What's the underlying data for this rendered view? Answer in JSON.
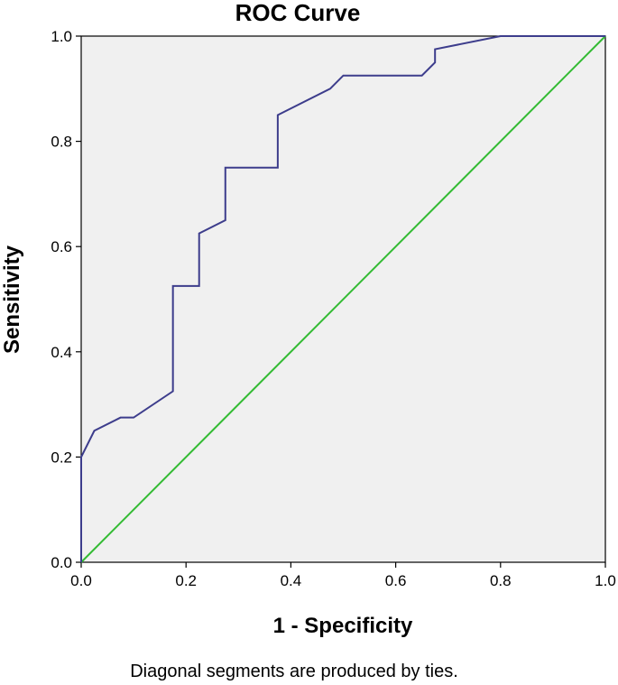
{
  "chart_data": {
    "type": "line",
    "title": "ROC Curve",
    "xlabel": "1 - Specificity",
    "ylabel": "Sensitivity",
    "xlim": [
      0.0,
      1.0
    ],
    "ylim": [
      0.0,
      1.0
    ],
    "xticks": [
      "0.0",
      "0.2",
      "0.4",
      "0.6",
      "0.8",
      "1.0"
    ],
    "yticks": [
      "0.0",
      "0.2",
      "0.4",
      "0.6",
      "0.8",
      "1.0"
    ],
    "grid": false,
    "plot_background": "#f0f0f0",
    "series": [
      {
        "color": "#3d3d8c",
        "x": [
          0.0,
          0.0,
          0.025,
          0.075,
          0.1,
          0.175,
          0.175,
          0.225,
          0.225,
          0.275,
          0.275,
          0.375,
          0.375,
          0.475,
          0.5,
          0.65,
          0.675,
          0.675,
          0.8,
          1.0
        ],
        "y": [
          0.0,
          0.2,
          0.25,
          0.275,
          0.275,
          0.325,
          0.525,
          0.525,
          0.625,
          0.65,
          0.75,
          0.75,
          0.85,
          0.9,
          0.925,
          0.925,
          0.95,
          0.975,
          1.0,
          1.0
        ]
      },
      {
        "color": "#33bb33",
        "x": [
          0.0,
          1.0
        ],
        "y": [
          0.0,
          1.0
        ]
      }
    ]
  },
  "footnote": "Diagonal segments are produced by ties."
}
